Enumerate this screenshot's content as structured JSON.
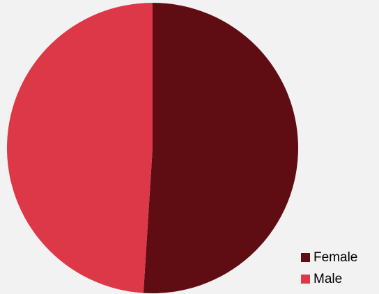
{
  "chart_data": {
    "type": "pie",
    "categories": [
      "Female",
      "Male"
    ],
    "values": [
      51,
      49
    ],
    "colors": [
      "#600c13",
      "#dc3848"
    ],
    "legend": "bottom-right"
  }
}
